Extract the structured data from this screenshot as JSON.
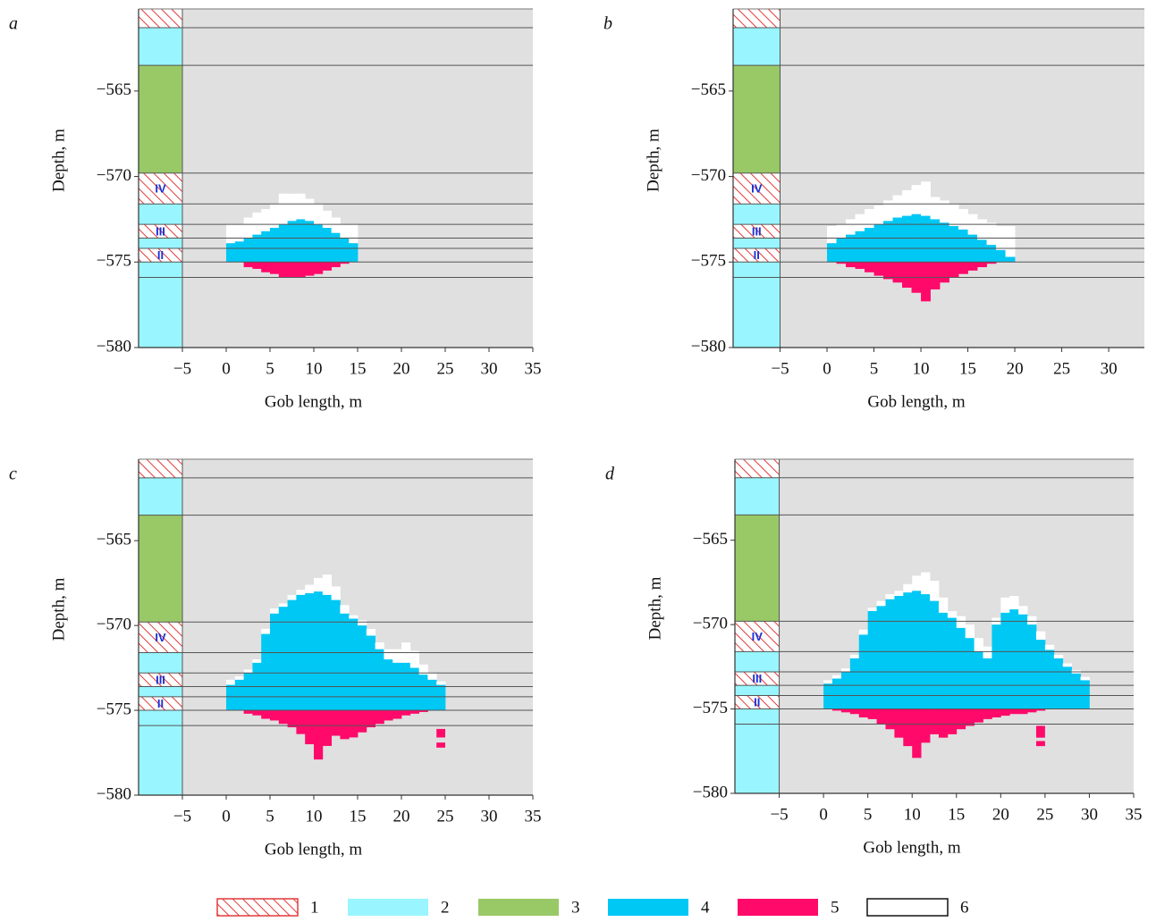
{
  "chart_data": [
    {
      "type": "strata",
      "label": "a",
      "xlabel": "Gob length, m",
      "ylabel": "Depth, m",
      "xlim": [
        -10,
        35
      ],
      "ylim": [
        -580,
        -560.2
      ],
      "xticks": [
        {
          "value": -5,
          "label": "−5"
        },
        0,
        5,
        10,
        15,
        20,
        25,
        30,
        35
      ],
      "yticks": [
        {
          "value": -565,
          "label": "−565"
        },
        {
          "value": -570,
          "label": "−570"
        },
        {
          "value": -575,
          "label": "−575"
        },
        {
          "value": -580,
          "label": "−580"
        }
      ],
      "seam_level": -575,
      "x": [
        0,
        1,
        2,
        3,
        4,
        5,
        6,
        7,
        8,
        9,
        10,
        11,
        12,
        13,
        14
      ],
      "zone4_top": [
        -573.9,
        -573.8,
        -573.6,
        -573.4,
        -573.2,
        -573.0,
        -572.8,
        -572.6,
        -572.5,
        -572.6,
        -572.8,
        -573.0,
        -573.3,
        -573.6,
        -573.9
      ],
      "zone6_top": [
        -572.8,
        -572.8,
        -572.4,
        -572.1,
        -571.9,
        -571.6,
        -571.0,
        -571.0,
        -571.0,
        -571.3,
        -571.6,
        -572.0,
        -572.4,
        -572.8,
        -572.8
      ],
      "zone5_bottom": [
        -575,
        -575,
        -575.3,
        -575.4,
        -575.6,
        -575.7,
        -575.9,
        -575.9,
        -575.9,
        -575.8,
        -575.7,
        -575.5,
        -575.3,
        -575.1,
        -575
      ],
      "zone5_patches": []
    },
    {
      "type": "strata",
      "label": "b",
      "xlabel": "Gob length, m",
      "ylabel": "Depth, m",
      "xlim": [
        -10,
        33.8
      ],
      "ylim": [
        -580,
        -560.2
      ],
      "xticks": [
        {
          "value": -5,
          "label": "−5"
        },
        0,
        5,
        10,
        15,
        20,
        25,
        30
      ],
      "yticks": [
        {
          "value": -565,
          "label": "−565"
        },
        {
          "value": -570,
          "label": "−570"
        },
        {
          "value": -575,
          "label": "−575"
        },
        {
          "value": -580,
          "label": "−580"
        }
      ],
      "seam_level": -575,
      "x": [
        0,
        1,
        2,
        3,
        4,
        5,
        6,
        7,
        8,
        9,
        10,
        11,
        12,
        13,
        14,
        15,
        16,
        17,
        18,
        19
      ],
      "zone4_top": [
        -573.9,
        -573.6,
        -573.4,
        -573.2,
        -573.0,
        -572.8,
        -572.6,
        -572.4,
        -572.3,
        -572.2,
        -572.3,
        -572.5,
        -572.7,
        -572.9,
        -573.1,
        -573.4,
        -573.7,
        -574.0,
        -574.3,
        -574.7
      ],
      "zone6_top": [
        -572.9,
        -572.8,
        -572.5,
        -572.2,
        -571.9,
        -571.7,
        -571.4,
        -571.1,
        -570.8,
        -570.5,
        -570.3,
        -571.2,
        -571.4,
        -571.6,
        -571.9,
        -572.2,
        -572.5,
        -572.7,
        -572.9,
        -572.9
      ],
      "zone5_bottom": [
        -575,
        -575.1,
        -575.3,
        -575.4,
        -575.6,
        -575.8,
        -576.0,
        -576.2,
        -576.5,
        -576.8,
        -577.3,
        -576.6,
        -576.2,
        -575.9,
        -575.7,
        -575.5,
        -575.3,
        -575.1,
        -575,
        -575
      ],
      "zone5_patches": []
    },
    {
      "type": "strata",
      "label": "c",
      "xlabel": "Gob length, m",
      "ylabel": "Depth, m",
      "xlim": [
        -10,
        35
      ],
      "ylim": [
        -580,
        -560.2
      ],
      "xticks": [
        {
          "value": -5,
          "label": "−5"
        },
        0,
        5,
        10,
        15,
        20,
        25,
        30,
        35
      ],
      "yticks": [
        {
          "value": -565,
          "label": "−565"
        },
        {
          "value": -570,
          "label": "−570"
        },
        {
          "value": -575,
          "label": "−575"
        },
        {
          "value": -580,
          "label": "−580"
        }
      ],
      "seam_level": -575,
      "x": [
        0,
        1,
        2,
        3,
        4,
        5,
        6,
        7,
        8,
        9,
        10,
        11,
        12,
        13,
        14,
        15,
        16,
        17,
        18,
        19,
        20,
        21,
        22,
        23,
        24
      ],
      "zone4_top": [
        -573.5,
        -573.2,
        -572.8,
        -572.2,
        -570.5,
        -569.3,
        -568.9,
        -568.5,
        -568.2,
        -568.1,
        -568.0,
        -568.2,
        -568.5,
        -569.3,
        -569.6,
        -570.0,
        -570.6,
        -571.4,
        -572.0,
        -572.2,
        -572.2,
        -572.5,
        -572.9,
        -573.2,
        -573.5
      ],
      "zone6_top": [
        -573.2,
        -573.0,
        -572.6,
        -572.0,
        -570.2,
        -569.0,
        -568.7,
        -568.2,
        -567.9,
        -567.6,
        -567.2,
        -567.0,
        -567.7,
        -568.8,
        -569.4,
        -569.7,
        -570.2,
        -571.0,
        -571.4,
        -571.4,
        -571.0,
        -571.5,
        -572.3,
        -572.8,
        -573.3
      ],
      "zone5_bottom": [
        -575,
        -575,
        -575.2,
        -575.3,
        -575.5,
        -575.6,
        -575.8,
        -576.0,
        -576.4,
        -577.0,
        -577.9,
        -577.1,
        -576.5,
        -576.7,
        -576.6,
        -576.3,
        -576.0,
        -575.8,
        -575.6,
        -575.5,
        -575.3,
        -575.2,
        -575.1,
        -575,
        -575
      ],
      "zone5_patches": [
        [
          24,
          -576.1,
          -576.6
        ],
        [
          24,
          -576.9,
          -577.2
        ]
      ]
    },
    {
      "type": "strata",
      "label": "d",
      "xlabel": "Gob length, m",
      "ylabel": "Depth, m",
      "xlim": [
        -10,
        35
      ],
      "ylim": [
        -580,
        -560.2
      ],
      "xticks": [
        {
          "value": -5,
          "label": "−5"
        },
        0,
        5,
        10,
        15,
        20,
        25,
        30,
        35
      ],
      "yticks": [
        {
          "value": -565,
          "label": "−565"
        },
        {
          "value": -570,
          "label": "−570"
        },
        {
          "value": -575,
          "label": "−575"
        },
        {
          "value": -580,
          "label": "−580"
        }
      ],
      "seam_level": -575,
      "x": [
        0,
        1,
        2,
        3,
        4,
        5,
        6,
        7,
        8,
        9,
        10,
        11,
        12,
        13,
        14,
        15,
        16,
        17,
        18,
        19,
        20,
        21,
        22,
        23,
        24,
        25,
        26,
        27,
        28,
        29
      ],
      "zone4_top": [
        -573.5,
        -573.2,
        -572.8,
        -572.0,
        -570.6,
        -569.2,
        -568.9,
        -568.5,
        -568.3,
        -568.1,
        -568.0,
        -568.2,
        -568.6,
        -569.3,
        -569.6,
        -570.2,
        -570.8,
        -571.6,
        -572.0,
        -570.0,
        -569.3,
        -569.1,
        -569.4,
        -570.0,
        -570.9,
        -571.5,
        -572.0,
        -572.5,
        -572.9,
        -573.3
      ],
      "zone6_top": [
        -573.3,
        -573.0,
        -572.6,
        -571.8,
        -570.3,
        -569.0,
        -568.6,
        -568.2,
        -568.0,
        -567.6,
        -567.1,
        -566.9,
        -567.4,
        -568.4,
        -569.2,
        -569.5,
        -570.0,
        -570.8,
        -571.3,
        -569.6,
        -568.4,
        -568.3,
        -568.9,
        -569.5,
        -570.4,
        -571.2,
        -571.8,
        -572.3,
        -572.7,
        -573.1
      ],
      "zone5_bottom": [
        -575,
        -575.1,
        -575.2,
        -575.3,
        -575.5,
        -575.6,
        -575.9,
        -576.2,
        -576.7,
        -577.2,
        -577.9,
        -577.0,
        -576.5,
        -576.7,
        -576.5,
        -576.2,
        -576.0,
        -575.8,
        -575.6,
        -575.5,
        -575.4,
        -575.3,
        -575.3,
        -575.2,
        -575.1,
        -575,
        -575,
        -575,
        -575,
        -575
      ],
      "zone5_patches": [
        [
          24,
          -576.0,
          -576.7
        ],
        [
          24,
          -576.9,
          -577.2
        ]
      ]
    }
  ],
  "strata_x": [
    -10,
    -5
  ],
  "strata": [
    {
      "top": -560.2,
      "bottom": -561.3,
      "fill": "hatch"
    },
    {
      "top": -561.3,
      "bottom": -563.5,
      "fill": "#99f5ff"
    },
    {
      "top": -563.5,
      "bottom": -569.8,
      "fill": "#99c966"
    },
    {
      "top": -569.8,
      "bottom": -571.6,
      "fill": "hatch",
      "label": "IV"
    },
    {
      "top": -571.6,
      "bottom": -572.8,
      "fill": "#99f5ff"
    },
    {
      "top": -572.8,
      "bottom": -573.6,
      "fill": "hatch",
      "label": "III"
    },
    {
      "top": -573.6,
      "bottom": -574.2,
      "fill": "#99f5ff"
    },
    {
      "top": -574.2,
      "bottom": -575.0,
      "fill": "hatch",
      "label": "II"
    },
    {
      "top": -575.0,
      "bottom": -580,
      "fill": "#99f5ff"
    }
  ],
  "boundaries": [
    -561.3,
    -563.5,
    -569.8,
    -571.6,
    -572.8,
    -573.6,
    -574.2,
    -575.0,
    -575.9
  ],
  "colors": {
    "zone4": "#00c8f5",
    "zone5": "#ff0a6a",
    "zone6": "#ffffff",
    "plot_bg": "#e0e0e0"
  },
  "legend": [
    {
      "label": "1",
      "fill": "hatch"
    },
    {
      "label": "2",
      "fill": "#99f5ff"
    },
    {
      "label": "3",
      "fill": "#99c966"
    },
    {
      "label": "4",
      "fill": "#00c8f5"
    },
    {
      "label": "5",
      "fill": "#ff0a6a"
    },
    {
      "label": "6",
      "fill": "#ffffff"
    }
  ]
}
